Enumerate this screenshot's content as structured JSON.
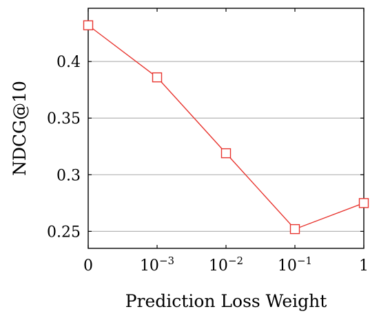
{
  "chart_data": {
    "type": "line",
    "xlabel": "Prediction Loss Weight",
    "ylabel": "NDCG@10",
    "categories": [
      {
        "base": "0",
        "exp": ""
      },
      {
        "base": "10",
        "exp": "−3"
      },
      {
        "base": "10",
        "exp": "−2"
      },
      {
        "base": "10",
        "exp": "−1"
      },
      {
        "base": "1",
        "exp": ""
      }
    ],
    "yticks": [
      "0.25",
      "0.3",
      "0.35",
      "0.4"
    ],
    "ylim": [
      0.235,
      0.447
    ],
    "grid": "horizontal",
    "series": [
      {
        "values": [
          0.432,
          0.386,
          0.319,
          0.252,
          0.275
        ],
        "color": "#e8352f",
        "marker": "square"
      }
    ]
  }
}
